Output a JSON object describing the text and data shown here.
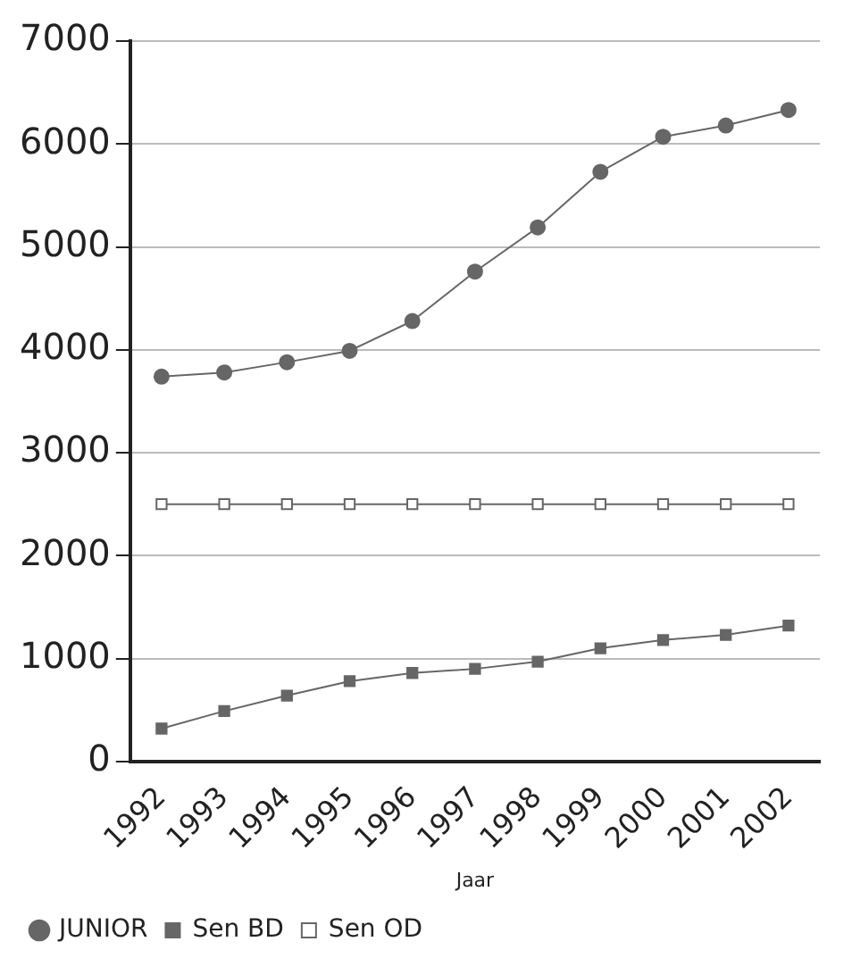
{
  "chart_data": {
    "type": "line",
    "xlabel": "Jaar",
    "categories": [
      "1992",
      "1993",
      "1994",
      "1995",
      "1996",
      "1997",
      "1998",
      "1999",
      "2000",
      "2001",
      "2002"
    ],
    "series": [
      {
        "name": "JUNIOR",
        "color": "#666666",
        "marker": "circle",
        "values": [
          3740,
          3780,
          3880,
          3990,
          4280,
          4760,
          5190,
          5730,
          6070,
          6180,
          6330
        ]
      },
      {
        "name": "Sen BD",
        "color": "#666666",
        "marker": "square",
        "values": [
          320,
          490,
          640,
          780,
          860,
          900,
          970,
          1100,
          1180,
          1230,
          1320
        ]
      },
      {
        "name": "Sen OD",
        "color": "#666666",
        "marker": "square-open",
        "values": [
          2500,
          2500,
          2500,
          2500,
          2500,
          2500,
          2500,
          2500,
          2500,
          2500,
          2500
        ]
      }
    ],
    "ylim": [
      0,
      7000
    ],
    "yticks": [
      0,
      1000,
      2000,
      3000,
      4000,
      5000,
      6000,
      7000
    ],
    "grid": "y",
    "legend": "bottom left",
    "line_style": "solid"
  }
}
